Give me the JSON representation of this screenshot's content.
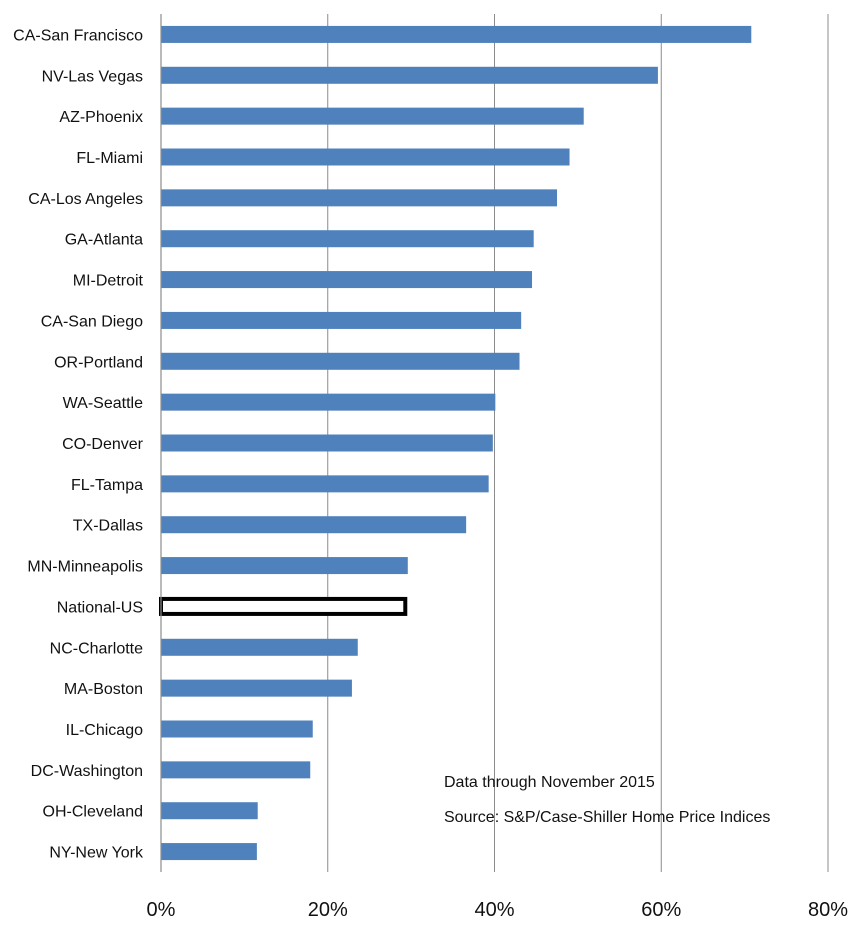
{
  "chart_data": {
    "type": "bar",
    "orientation": "horizontal",
    "title": "",
    "xlabel": "",
    "ylabel": "",
    "xlim": [
      0,
      80
    ],
    "x_ticks": [
      0,
      20,
      40,
      60,
      80
    ],
    "x_tick_labels": [
      "0%",
      "20%",
      "40%",
      "60%",
      "80%"
    ],
    "grid": "vertical",
    "bar_color": "#4f81bd",
    "highlight_outline_color": "#000000",
    "categories": [
      "CA-San Francisco",
      "NV-Las Vegas",
      "AZ-Phoenix",
      "FL-Miami",
      "CA-Los Angeles",
      "GA-Atlanta",
      "MI-Detroit",
      "CA-San Diego",
      "OR-Portland",
      "WA-Seattle",
      "CO-Denver",
      "FL-Tampa",
      "TX-Dallas",
      "MN-Minneapolis",
      "National-US",
      "NC-Charlotte",
      "MA-Boston",
      "IL-Chicago",
      "DC-Washington",
      "OH-Cleveland",
      "NY-New York"
    ],
    "values": [
      70.8,
      59.6,
      50.7,
      49.0,
      47.5,
      44.7,
      44.5,
      43.2,
      43.0,
      40.1,
      39.8,
      39.3,
      36.6,
      29.6,
      29.3,
      23.6,
      22.9,
      18.2,
      17.9,
      11.6,
      11.5
    ],
    "highlighted": [
      "National-US"
    ],
    "annotations": [
      "Data through November  2015",
      "Source: S&P/Case-Shiller Home Price Indices"
    ]
  }
}
